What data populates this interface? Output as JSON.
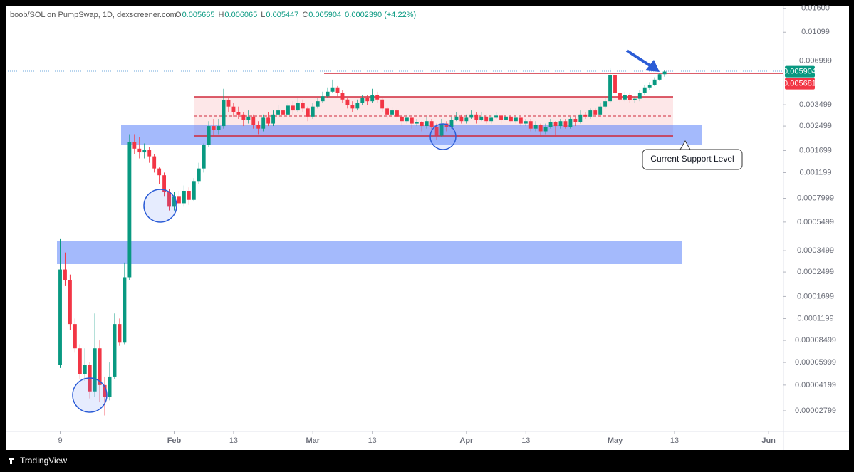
{
  "header": {
    "symbol": "boob/SOL on PumpSwap, 1D, dexscreener.com",
    "ohlc": [
      {
        "key": "O",
        "value": "0.005665"
      },
      {
        "key": "H",
        "value": "0.006065"
      },
      {
        "key": "L",
        "value": "0.005447"
      },
      {
        "key": "C",
        "value": "0.005904"
      }
    ],
    "change": "0.0002390 (+4.22%)"
  },
  "footer": {
    "brand": "TradingView"
  },
  "chart_data": {
    "type": "candlestick",
    "log_scale": true,
    "up_color": "#089981",
    "down_color": "#f23645",
    "annotation": "Current Support Level",
    "price_labels": [
      {
        "value": 0.005904,
        "color": "#089981"
      },
      {
        "value": 0.005681,
        "color": "#f23645"
      }
    ],
    "xlim": [
      -11,
      146
    ],
    "xticks": [
      {
        "value": 0,
        "label": "9"
      },
      {
        "value": 23,
        "label": "Feb"
      },
      {
        "value": 35,
        "label": "13"
      },
      {
        "value": 51,
        "label": "Mar"
      },
      {
        "value": 63,
        "label": "13"
      },
      {
        "value": 82,
        "label": "Apr"
      },
      {
        "value": 94,
        "label": "13"
      },
      {
        "value": 112,
        "label": "May"
      },
      {
        "value": 124,
        "label": "13"
      },
      {
        "value": 143,
        "label": "Jun"
      }
    ],
    "ylim": [
      2.02e-05,
      0.0167
    ],
    "yticks": [
      {
        "value": 0.016,
        "label": "0.01600"
      },
      0.01099,
      0.006999,
      0.003499,
      0.002499,
      0.001699,
      0.001199,
      0.0007999,
      0.0005499,
      0.0003499,
      0.0002499,
      0.0001699,
      0.0001199,
      8.499e-05,
      5.999e-05,
      4.199e-05,
      2.799e-05
    ],
    "x": [
      0,
      1,
      2,
      3,
      4,
      5,
      6,
      7,
      8,
      9,
      10,
      11,
      12,
      13,
      14,
      15,
      16,
      17,
      18,
      19,
      20,
      21,
      22,
      23,
      24,
      25,
      26,
      27,
      28,
      29,
      30,
      31,
      32,
      33,
      34,
      35,
      36,
      37,
      38,
      39,
      40,
      41,
      42,
      43,
      44,
      45,
      46,
      47,
      48,
      49,
      50,
      51,
      52,
      53,
      54,
      55,
      56,
      57,
      58,
      59,
      60,
      61,
      62,
      63,
      64,
      65,
      66,
      67,
      68,
      69,
      70,
      71,
      72,
      73,
      74,
      75,
      76,
      77,
      78,
      79,
      80,
      81,
      82,
      83,
      84,
      85,
      86,
      87,
      88,
      89,
      90,
      91,
      92,
      93,
      94,
      95,
      96,
      97,
      98,
      99,
      100,
      101,
      102,
      103,
      104,
      105,
      106,
      107,
      108,
      109,
      110,
      111,
      112,
      113,
      114,
      115,
      116,
      117,
      118,
      119,
      120,
      121,
      122
    ],
    "open": [
      5.8e-05,
      0.00026,
      0.00022,
      0.00011,
      7.5e-05,
      5e-05,
      5.8e-05,
      3.8e-05,
      7.5e-05,
      4.2e-05,
      3.5e-05,
      4.8e-05,
      0.00011,
      8.2e-05,
      0.00023,
      0.00195,
      0.00175,
      0.00165,
      0.00172,
      0.00155,
      0.00128,
      0.00115,
      0.00088,
      0.0007,
      0.00082,
      0.00074,
      0.0009,
      0.00078,
      0.00105,
      0.00128,
      0.00185,
      0.0025,
      0.00235,
      0.0025,
      0.00375,
      0.0034,
      0.0031,
      0.003,
      0.00275,
      0.0029,
      0.00255,
      0.0024,
      0.00285,
      0.0026,
      0.003,
      0.0032,
      0.003,
      0.00345,
      0.0032,
      0.0036,
      0.0033,
      0.0029,
      0.0034,
      0.0037,
      0.004,
      0.0043,
      0.0046,
      0.0042,
      0.0038,
      0.0035,
      0.0033,
      0.0036,
      0.0039,
      0.0037,
      0.0041,
      0.0038,
      0.0033,
      0.003,
      0.0032,
      0.0029,
      0.0027,
      0.00285,
      0.0026,
      0.00265,
      0.0025,
      0.0027,
      0.00245,
      0.00215,
      0.0026,
      0.00245,
      0.00275,
      0.0029,
      0.0027,
      0.00285,
      0.003,
      0.00275,
      0.0029,
      0.0027,
      0.00285,
      0.00295,
      0.00275,
      0.0029,
      0.0027,
      0.00285,
      0.0026,
      0.0027,
      0.0024,
      0.00255,
      0.0023,
      0.00245,
      0.00265,
      0.0025,
      0.0027,
      0.00245,
      0.0028,
      0.00265,
      0.003,
      0.0029,
      0.0032,
      0.003,
      0.0034,
      0.0037,
      0.0056,
      0.0042,
      0.0038,
      0.0041,
      0.00375,
      0.00385,
      0.0042,
      0.0046,
      0.0048,
      0.0052,
      0.005665
    ],
    "high": [
      0.00042,
      0.00034,
      0.00024,
      0.00012,
      8e-05,
      7.5e-05,
      6e-05,
      0.00013,
      8.5e-05,
      4.8e-05,
      6e-05,
      0.00013,
      0.00012,
      0.00029,
      0.0022,
      0.0022,
      0.0021,
      0.0019,
      0.0018,
      0.0016,
      0.0013,
      0.0012,
      0.00092,
      0.00088,
      0.0009,
      0.00098,
      0.00095,
      0.0011,
      0.0014,
      0.0019,
      0.0027,
      0.0028,
      0.0028,
      0.0045,
      0.0039,
      0.0036,
      0.0034,
      0.0031,
      0.0032,
      0.003,
      0.0027,
      0.003,
      0.0031,
      0.0032,
      0.0035,
      0.0034,
      0.0036,
      0.0037,
      0.0039,
      0.0038,
      0.0034,
      0.0036,
      0.0039,
      0.0043,
      0.0046,
      0.0052,
      0.0047,
      0.0044,
      0.0039,
      0.0037,
      0.0038,
      0.0041,
      0.0041,
      0.0045,
      0.0043,
      0.0039,
      0.0034,
      0.0034,
      0.0033,
      0.003,
      0.003,
      0.0029,
      0.0028,
      0.0027,
      0.0029,
      0.0028,
      0.0026,
      0.0028,
      0.0027,
      0.0029,
      0.0031,
      0.003,
      0.003,
      0.0032,
      0.0031,
      0.0031,
      0.003,
      0.003,
      0.0031,
      0.003,
      0.003,
      0.003,
      0.0029,
      0.0029,
      0.0028,
      0.0028,
      0.0027,
      0.0026,
      0.0026,
      0.0028,
      0.0027,
      0.0028,
      0.0028,
      0.0029,
      0.0029,
      0.0032,
      0.0031,
      0.0033,
      0.0033,
      0.0036,
      0.0039,
      0.0062,
      0.0058,
      0.0043,
      0.0043,
      0.0042,
      0.004,
      0.0044,
      0.0048,
      0.005,
      0.0054,
      0.0058,
      0.006065
    ],
    "low": [
      5.5e-05,
      0.0002,
      0.0001,
      7e-05,
      4.6e-05,
      4.5e-05,
      3.4e-05,
      3.5e-05,
      3.2e-05,
      2.6e-05,
      3.3e-05,
      4.6e-05,
      7.8e-05,
      8e-05,
      0.00022,
      0.0016,
      0.0015,
      0.0015,
      0.0014,
      0.0012,
      0.001,
      0.00082,
      0.00066,
      0.00066,
      0.0007,
      0.0007,
      0.00072,
      0.00076,
      0.001,
      0.0012,
      0.0018,
      0.0021,
      0.0022,
      0.0024,
      0.0031,
      0.0029,
      0.0028,
      0.0025,
      0.0026,
      0.0024,
      0.0022,
      0.0023,
      0.0025,
      0.0025,
      0.0029,
      0.0028,
      0.0029,
      0.003,
      0.0031,
      0.0031,
      0.0027,
      0.0028,
      0.0033,
      0.0036,
      0.0039,
      0.0042,
      0.004,
      0.0036,
      0.0033,
      0.0031,
      0.0032,
      0.0035,
      0.0035,
      0.0036,
      0.0036,
      0.0031,
      0.0028,
      0.0029,
      0.0027,
      0.0025,
      0.0026,
      0.0024,
      0.0025,
      0.0023,
      0.0024,
      0.0023,
      0.002,
      0.0021,
      0.0023,
      0.0024,
      0.0027,
      0.0026,
      0.0026,
      0.0028,
      0.0026,
      0.0027,
      0.0026,
      0.0026,
      0.0028,
      0.0026,
      0.0027,
      0.0026,
      0.0026,
      0.0025,
      0.0025,
      0.0023,
      0.0023,
      0.0021,
      0.0022,
      0.0024,
      0.0021,
      0.0024,
      0.0024,
      0.0024,
      0.0025,
      0.0026,
      0.0028,
      0.0028,
      0.0029,
      0.003,
      0.0033,
      0.0036,
      0.0041,
      0.0036,
      0.0037,
      0.0036,
      0.0036,
      0.0037,
      0.0041,
      0.0044,
      0.0047,
      0.0051,
      0.005447
    ],
    "close": [
      0.00026,
      0.00022,
      0.00011,
      7.5e-05,
      5e-05,
      5.8e-05,
      3.8e-05,
      7.5e-05,
      4.2e-05,
      3.5e-05,
      4.8e-05,
      0.00011,
      8.2e-05,
      0.00023,
      0.00195,
      0.00175,
      0.00165,
      0.00172,
      0.00155,
      0.00128,
      0.00115,
      0.00088,
      0.0007,
      0.00082,
      0.00074,
      0.0009,
      0.00078,
      0.00105,
      0.00128,
      0.00185,
      0.0025,
      0.00235,
      0.0025,
      0.00375,
      0.0034,
      0.0031,
      0.003,
      0.00275,
      0.0029,
      0.00255,
      0.0024,
      0.00285,
      0.0026,
      0.003,
      0.0032,
      0.003,
      0.00345,
      0.0032,
      0.0036,
      0.0033,
      0.0029,
      0.0034,
      0.0037,
      0.004,
      0.0043,
      0.0046,
      0.0042,
      0.0038,
      0.0035,
      0.0033,
      0.0036,
      0.0039,
      0.0037,
      0.0041,
      0.0038,
      0.0033,
      0.003,
      0.0032,
      0.0029,
      0.0027,
      0.00285,
      0.0026,
      0.00265,
      0.0025,
      0.0027,
      0.00245,
      0.00215,
      0.0026,
      0.00245,
      0.00275,
      0.0029,
      0.0027,
      0.00285,
      0.003,
      0.00275,
      0.0029,
      0.0027,
      0.00285,
      0.00295,
      0.00275,
      0.0029,
      0.0027,
      0.00285,
      0.0026,
      0.0027,
      0.0024,
      0.00255,
      0.0023,
      0.00245,
      0.00265,
      0.0025,
      0.0027,
      0.00245,
      0.0028,
      0.00265,
      0.003,
      0.0029,
      0.0032,
      0.003,
      0.0034,
      0.0037,
      0.0056,
      0.0042,
      0.0038,
      0.0041,
      0.00375,
      0.00385,
      0.0042,
      0.0046,
      0.0048,
      0.0052,
      0.005665,
      0.005904
    ]
  }
}
